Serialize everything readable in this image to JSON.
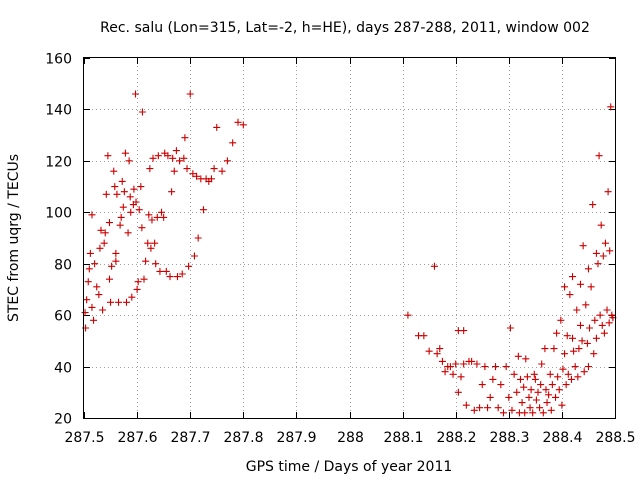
{
  "chart_data": {
    "type": "scatter",
    "title": "Rec. salu (Lon=315, Lat=-2, h=HE), days 287-288, 2011, window 002",
    "xlabel": "GPS time / Days of year 2011",
    "ylabel": "STEC from uqrg / TECUs",
    "xlim": [
      287.5,
      288.5
    ],
    "ylim": [
      20,
      160
    ],
    "xticks": [
      287.5,
      287.6,
      287.7,
      287.8,
      287.9,
      288,
      288.1,
      288.2,
      288.3,
      288.4,
      288.5
    ],
    "xtick_labels": [
      "287.5",
      "287.6",
      "287.7",
      "287.8",
      "287.9",
      "288",
      "288.1",
      "288.2",
      "288.3",
      "288.4",
      "288.5"
    ],
    "yticks": [
      20,
      40,
      60,
      80,
      100,
      120,
      140,
      160
    ],
    "ytick_labels": [
      "20",
      "40",
      "60",
      "80",
      "100",
      "120",
      "140",
      "160"
    ],
    "grid": true,
    "marker": "plus",
    "color": "#cc0000",
    "points": [
      [
        287.502,
        61
      ],
      [
        287.503,
        55
      ],
      [
        287.505,
        66
      ],
      [
        287.508,
        73
      ],
      [
        287.51,
        78
      ],
      [
        287.512,
        84
      ],
      [
        287.515,
        99
      ],
      [
        287.515,
        63
      ],
      [
        287.518,
        58
      ],
      [
        287.52,
        80
      ],
      [
        287.524,
        71
      ],
      [
        287.528,
        68
      ],
      [
        287.53,
        86
      ],
      [
        287.532,
        93
      ],
      [
        287.535,
        62
      ],
      [
        287.538,
        88
      ],
      [
        287.54,
        92
      ],
      [
        287.542,
        107
      ],
      [
        287.545,
        122
      ],
      [
        287.548,
        96
      ],
      [
        287.548,
        74
      ],
      [
        287.55,
        65
      ],
      [
        287.552,
        79
      ],
      [
        287.556,
        116
      ],
      [
        287.558,
        110
      ],
      [
        287.56,
        84
      ],
      [
        287.56,
        81
      ],
      [
        287.562,
        107
      ],
      [
        287.565,
        65
      ],
      [
        287.568,
        95
      ],
      [
        287.57,
        98
      ],
      [
        287.572,
        112
      ],
      [
        287.574,
        102
      ],
      [
        287.576,
        108
      ],
      [
        287.578,
        123
      ],
      [
        287.58,
        65
      ],
      [
        287.583,
        92
      ],
      [
        287.585,
        120
      ],
      [
        287.587,
        106
      ],
      [
        287.588,
        100
      ],
      [
        287.59,
        67
      ],
      [
        287.593,
        103
      ],
      [
        287.594,
        109
      ],
      [
        287.597,
        146
      ],
      [
        287.598,
        104
      ],
      [
        287.6,
        70
      ],
      [
        287.602,
        73
      ],
      [
        287.604,
        101
      ],
      [
        287.607,
        110
      ],
      [
        287.609,
        94
      ],
      [
        287.61,
        139
      ],
      [
        287.613,
        74
      ],
      [
        287.616,
        81
      ],
      [
        287.62,
        88
      ],
      [
        287.622,
        99
      ],
      [
        287.624,
        117
      ],
      [
        287.626,
        86
      ],
      [
        287.628,
        97
      ],
      [
        287.63,
        121
      ],
      [
        287.633,
        88
      ],
      [
        287.635,
        80
      ],
      [
        287.638,
        98
      ],
      [
        287.64,
        122
      ],
      [
        287.643,
        77
      ],
      [
        287.646,
        100
      ],
      [
        287.65,
        98
      ],
      [
        287.652,
        123
      ],
      [
        287.655,
        77
      ],
      [
        287.658,
        122
      ],
      [
        287.662,
        75
      ],
      [
        287.665,
        108
      ],
      [
        287.667,
        121
      ],
      [
        287.67,
        116
      ],
      [
        287.674,
        124
      ],
      [
        287.676,
        75
      ],
      [
        287.68,
        120
      ],
      [
        287.685,
        76
      ],
      [
        287.688,
        121
      ],
      [
        287.69,
        129
      ],
      [
        287.694,
        117
      ],
      [
        287.697,
        79
      ],
      [
        287.7,
        146
      ],
      [
        287.705,
        115
      ],
      [
        287.708,
        83
      ],
      [
        287.712,
        114
      ],
      [
        287.715,
        90
      ],
      [
        287.72,
        113
      ],
      [
        287.725,
        101
      ],
      [
        287.73,
        113
      ],
      [
        287.735,
        112
      ],
      [
        287.74,
        113
      ],
      [
        287.745,
        117
      ],
      [
        287.75,
        133
      ],
      [
        287.76,
        116
      ],
      [
        287.77,
        120
      ],
      [
        287.78,
        127
      ],
      [
        287.79,
        135
      ],
      [
        287.8,
        134
      ],
      [
        288.11,
        60
      ],
      [
        288.13,
        52
      ],
      [
        288.14,
        52
      ],
      [
        288.15,
        46
      ],
      [
        288.16,
        79
      ],
      [
        288.165,
        45
      ],
      [
        288.17,
        47
      ],
      [
        288.175,
        42
      ],
      [
        288.18,
        38
      ],
      [
        288.185,
        40
      ],
      [
        288.19,
        40
      ],
      [
        288.195,
        37
      ],
      [
        288.2,
        41
      ],
      [
        288.205,
        54
      ],
      [
        288.205,
        30
      ],
      [
        288.21,
        36
      ],
      [
        288.215,
        54
      ],
      [
        288.215,
        41
      ],
      [
        288.22,
        25
      ],
      [
        288.225,
        42
      ],
      [
        288.23,
        42
      ],
      [
        288.235,
        23
      ],
      [
        288.24,
        41
      ],
      [
        288.245,
        24
      ],
      [
        288.25,
        33
      ],
      [
        288.255,
        40
      ],
      [
        288.26,
        24
      ],
      [
        288.265,
        28
      ],
      [
        288.27,
        35
      ],
      [
        288.275,
        40
      ],
      [
        288.28,
        24
      ],
      [
        288.285,
        33
      ],
      [
        288.29,
        22
      ],
      [
        288.295,
        40
      ],
      [
        288.3,
        28
      ],
      [
        288.303,
        55
      ],
      [
        288.306,
        23
      ],
      [
        288.31,
        37
      ],
      [
        288.315,
        30
      ],
      [
        288.318,
        44
      ],
      [
        288.32,
        22
      ],
      [
        288.322,
        35
      ],
      [
        288.325,
        26
      ],
      [
        288.328,
        32
      ],
      [
        288.33,
        22
      ],
      [
        288.332,
        43
      ],
      [
        288.335,
        36
      ],
      [
        288.338,
        28
      ],
      [
        288.34,
        24
      ],
      [
        288.342,
        31
      ],
      [
        288.345,
        22
      ],
      [
        288.348,
        37
      ],
      [
        288.35,
        35
      ],
      [
        288.352,
        27
      ],
      [
        288.355,
        30
      ],
      [
        288.358,
        24
      ],
      [
        288.36,
        33
      ],
      [
        288.362,
        41
      ],
      [
        288.365,
        22
      ],
      [
        288.368,
        47
      ],
      [
        288.37,
        31
      ],
      [
        288.372,
        26
      ],
      [
        288.375,
        29
      ],
      [
        288.378,
        37
      ],
      [
        288.38,
        23
      ],
      [
        288.382,
        33
      ],
      [
        288.385,
        47
      ],
      [
        288.388,
        28
      ],
      [
        288.39,
        53
      ],
      [
        288.392,
        36
      ],
      [
        288.395,
        31
      ],
      [
        288.398,
        58
      ],
      [
        288.4,
        25
      ],
      [
        288.402,
        39
      ],
      [
        288.405,
        45
      ],
      [
        288.408,
        33
      ],
      [
        288.41,
        52
      ],
      [
        288.412,
        37
      ],
      [
        288.415,
        68
      ],
      [
        288.418,
        35
      ],
      [
        288.42,
        51
      ],
      [
        288.422,
        46
      ],
      [
        288.425,
        40
      ],
      [
        288.428,
        62
      ],
      [
        288.43,
        36
      ],
      [
        288.432,
        47
      ],
      [
        288.435,
        56
      ],
      [
        288.438,
        50
      ],
      [
        288.44,
        87
      ],
      [
        288.442,
        38
      ],
      [
        288.445,
        64
      ],
      [
        288.448,
        49
      ],
      [
        288.45,
        40
      ],
      [
        288.452,
        55
      ],
      [
        288.455,
        71
      ],
      [
        288.458,
        103
      ],
      [
        288.46,
        45
      ],
      [
        288.462,
        58
      ],
      [
        288.465,
        51
      ],
      [
        288.468,
        80
      ],
      [
        288.47,
        122
      ],
      [
        288.472,
        60
      ],
      [
        288.474,
        95
      ],
      [
        288.476,
        56
      ],
      [
        288.478,
        83
      ],
      [
        288.48,
        53
      ],
      [
        288.482,
        88
      ],
      [
        288.485,
        62
      ],
      [
        288.487,
        108
      ],
      [
        288.489,
        57
      ],
      [
        288.49,
        85
      ],
      [
        288.492,
        141
      ],
      [
        288.494,
        60
      ],
      [
        288.496,
        59
      ],
      [
        288.405,
        71
      ],
      [
        288.42,
        75
      ],
      [
        288.435,
        72
      ],
      [
        288.45,
        78
      ],
      [
        288.465,
        84
      ]
    ]
  }
}
